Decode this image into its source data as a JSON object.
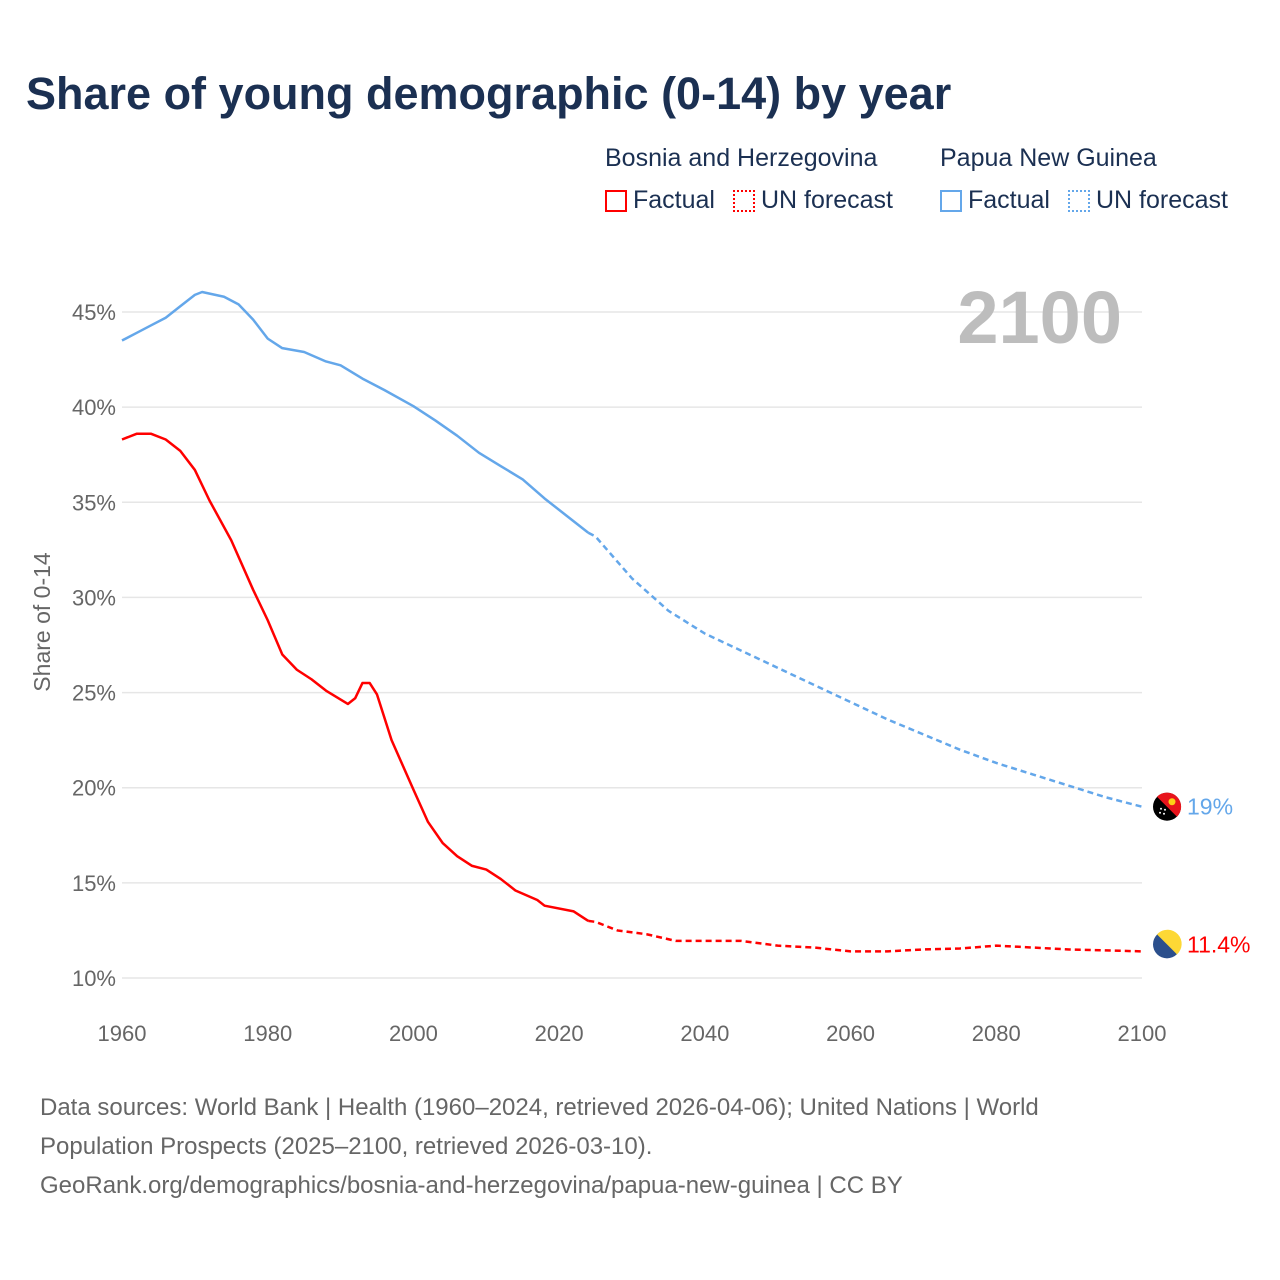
{
  "title": "Share of young demographic (0-14) by year",
  "legend": [
    {
      "country": "Bosnia and Herzegovina",
      "factual": "Factual",
      "forecast": "UN forecast",
      "color": "#ff0000"
    },
    {
      "country": "Papua New Guinea",
      "factual": "Factual",
      "forecast": "UN forecast",
      "color": "#64a7ea"
    }
  ],
  "year_overlay": "2100",
  "footer": {
    "line1": "Data sources: World Bank | Health (1960–2024, retrieved 2026-04-06); United Nations | World",
    "line2": "Population Prospects (2025–2100, retrieved 2026-03-10).",
    "line3": "GeoRank.org/demographics/bosnia-and-herzegovina/papua-new-guinea | CC BY"
  },
  "chart_data": {
    "type": "line",
    "title": "Share of young demographic (0-14) by year",
    "xlabel": "",
    "ylabel": "Share of 0-14",
    "xlim": [
      1960,
      2100
    ],
    "ylim": [
      10,
      46.5
    ],
    "xticks": [
      1960,
      1980,
      2000,
      2020,
      2040,
      2060,
      2080,
      2100
    ],
    "yticks": [
      10,
      15,
      20,
      25,
      30,
      35,
      40,
      45
    ],
    "ytick_labels": [
      "10%",
      "15%",
      "20%",
      "25%",
      "30%",
      "35%",
      "40%",
      "45%"
    ],
    "grid": true,
    "series": [
      {
        "name": "Bosnia and Herzegovina",
        "color": "#ff0000",
        "end_label": "11.4%",
        "factual": {
          "x": [
            1960,
            1962,
            1964,
            1966,
            1968,
            1970,
            1972,
            1975,
            1978,
            1980,
            1982,
            1984,
            1986,
            1988,
            1991,
            1992,
            1993,
            1994,
            1995,
            1997,
            2000,
            2002,
            2004,
            2006,
            2008,
            2010,
            2012,
            2014,
            2017,
            2018,
            2022,
            2024
          ],
          "y": [
            38.3,
            38.6,
            38.6,
            38.3,
            37.7,
            36.7,
            35.1,
            33.0,
            30.4,
            28.8,
            27.0,
            26.2,
            25.7,
            25.1,
            24.4,
            24.7,
            25.5,
            25.5,
            24.9,
            22.5,
            19.9,
            18.2,
            17.1,
            16.4,
            15.9,
            15.7,
            15.2,
            14.6,
            14.1,
            13.8,
            13.5,
            13.0
          ]
        },
        "forecast": {
          "x": [
            2024,
            2025,
            2028,
            2032,
            2036,
            2040,
            2045,
            2050,
            2055,
            2060,
            2065,
            2070,
            2075,
            2080,
            2085,
            2090,
            2095,
            2100
          ],
          "y": [
            13.0,
            12.95,
            12.5,
            12.3,
            11.95,
            11.95,
            11.95,
            11.7,
            11.6,
            11.4,
            11.4,
            11.5,
            11.55,
            11.7,
            11.6,
            11.5,
            11.45,
            11.4
          ]
        }
      },
      {
        "name": "Papua New Guinea",
        "color": "#64a7ea",
        "end_label": "19%",
        "factual": {
          "x": [
            1960,
            1962,
            1964,
            1966,
            1968,
            1970,
            1971,
            1974,
            1976,
            1978,
            1980,
            1982,
            1985,
            1988,
            1990,
            1993,
            1996,
            2000,
            2003,
            2006,
            2009,
            2012,
            2015,
            2018,
            2021,
            2024
          ],
          "y": [
            43.5,
            43.9,
            44.3,
            44.7,
            45.3,
            45.9,
            46.05,
            45.8,
            45.4,
            44.6,
            43.6,
            43.1,
            42.9,
            42.4,
            42.2,
            41.5,
            40.9,
            40.05,
            39.3,
            38.5,
            37.6,
            36.9,
            36.2,
            35.2,
            34.3,
            33.4
          ]
        },
        "forecast": {
          "x": [
            2024,
            2025,
            2030,
            2035,
            2040,
            2045,
            2050,
            2055,
            2060,
            2065,
            2070,
            2075,
            2080,
            2085,
            2090,
            2095,
            2100
          ],
          "y": [
            33.4,
            33.2,
            31.0,
            29.3,
            28.1,
            27.2,
            26.3,
            25.4,
            24.5,
            23.6,
            22.8,
            22.0,
            21.3,
            20.7,
            20.1,
            19.5,
            19.0
          ]
        }
      }
    ]
  }
}
